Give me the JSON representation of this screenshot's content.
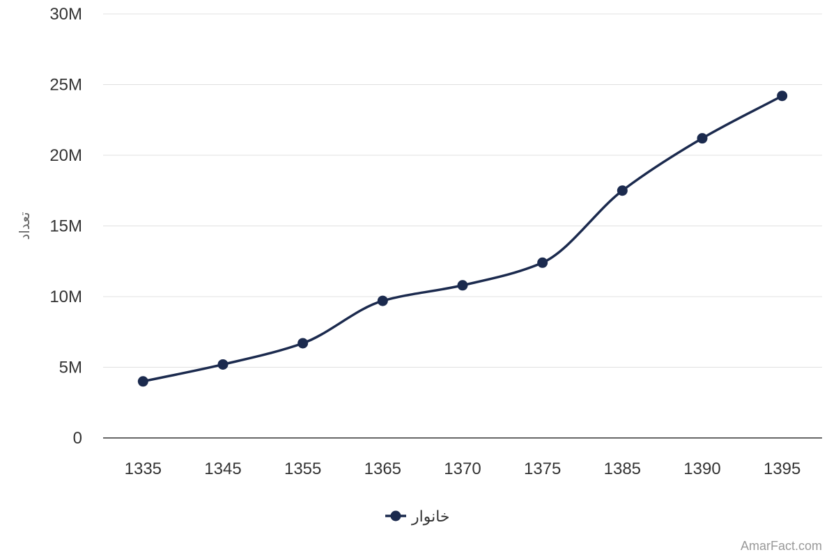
{
  "chart_data": {
    "type": "line",
    "title": "",
    "xlabel": "",
    "ylabel": "تعداد",
    "categories": [
      "1335",
      "1345",
      "1355",
      "1365",
      "1370",
      "1375",
      "1385",
      "1390",
      "1395"
    ],
    "series": [
      {
        "name": "خانوار",
        "values": [
          4000000,
          5200000,
          6700000,
          9700000,
          10800000,
          12400000,
          17500000,
          21200000,
          24200000
        ],
        "color": "#1b2a4e"
      }
    ],
    "ylim": [
      0,
      30000000
    ],
    "yticks": [
      0,
      5000000,
      10000000,
      15000000,
      20000000,
      25000000,
      30000000
    ],
    "ytick_labels": [
      "0",
      "5M",
      "10M",
      "15M",
      "20M",
      "25M",
      "30M"
    ],
    "grid": true,
    "smooth": true,
    "legend_position": "bottom-center"
  },
  "credit": "AmarFact.com"
}
